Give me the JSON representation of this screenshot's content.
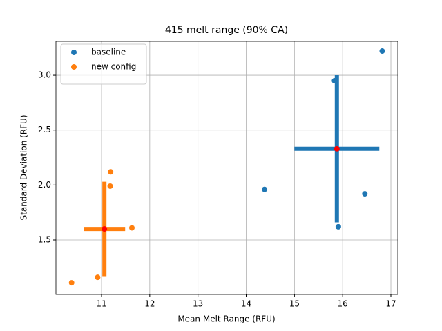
{
  "chart_data": {
    "type": "scatter",
    "title": "415 melt range (90% CA)",
    "x_label": "Mean Melt Range (RFU)",
    "y_label": "Standard Deviation (RFU)",
    "series": [
      {
        "name": "baseline",
        "color": "#1f77b4",
        "x": [
          16.82,
          15.83,
          14.38,
          16.46,
          15.91
        ],
        "values": [
          3.22,
          2.95,
          1.96,
          1.92,
          1.62
        ],
        "mean": {
          "x": 15.88,
          "y": 2.33,
          "xerr": 0.88,
          "yerr": 0.67,
          "color": "red"
        }
      },
      {
        "name": "new config",
        "color": "#ff7f0e",
        "x": [
          11.19,
          11.18,
          11.63,
          10.38,
          10.92
        ],
        "values": [
          2.12,
          1.99,
          1.61,
          1.11,
          1.16
        ],
        "mean": {
          "x": 11.06,
          "y": 1.6,
          "xerr": 0.43,
          "yerr": 0.43,
          "color": "red"
        }
      }
    ],
    "xlim": [
      10.055,
      17.143
    ],
    "ylim": [
      1.004,
      3.308
    ],
    "xticks": [
      11,
      12,
      13,
      14,
      15,
      16,
      17
    ],
    "yticks": [
      1.5,
      {
        "value": 2,
        "label": "2.0"
      },
      2.5,
      {
        "value": 3,
        "label": "3.0"
      }
    ],
    "grid": true,
    "legend": "upper-left"
  }
}
